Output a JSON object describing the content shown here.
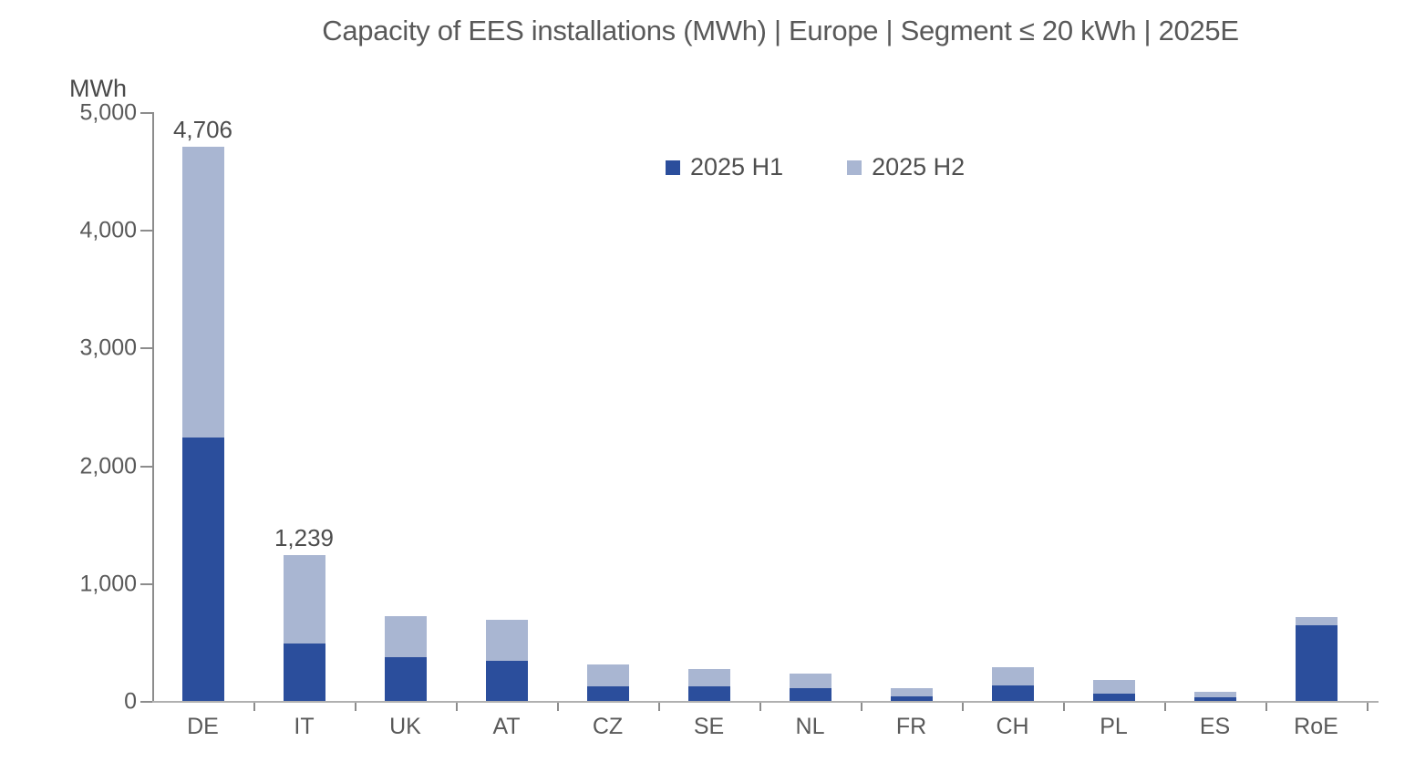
{
  "page": {
    "background": "#ffffff"
  },
  "chart_data": {
    "type": "bar",
    "stacked": true,
    "title": "Capacity of EES installations (MWh) | Europe | Segment ≤ 20 kWh | 2025E",
    "unit_label": "MWh",
    "ylabel": "MWh",
    "xlabel": "",
    "grid": false,
    "legend_position": "top-center",
    "ylim": [
      0,
      5000
    ],
    "ytick_labels": [
      "5,000",
      "4,000",
      "3,000",
      "2,000",
      "1,000",
      "0"
    ],
    "categories": [
      "DE",
      "IT",
      "UK",
      "AT",
      "CZ",
      "SE",
      "NL",
      "FR",
      "CH",
      "PL",
      "ES",
      "RoE"
    ],
    "series": [
      {
        "name": "2025 H1",
        "color": "#2b4e9c",
        "values": [
          2240,
          490,
          370,
          340,
          120,
          125,
          105,
          40,
          130,
          60,
          30,
          640
        ]
      },
      {
        "name": "2025 H2",
        "color": "#a9b6d2",
        "values": [
          2466,
          749,
          350,
          350,
          190,
          145,
          125,
          70,
          160,
          120,
          45,
          75
        ]
      }
    ],
    "totals_mwh": [
      4706,
      1239,
      720,
      690,
      310,
      270,
      230,
      110,
      290,
      180,
      75,
      715
    ],
    "visible_total_labels": [
      "4,706",
      "1,239",
      "",
      "",
      "",
      "",
      "",
      "",
      "",
      "",
      "",
      ""
    ]
  },
  "colors": {
    "series_h1": "#2b4e9c",
    "series_h2": "#a9b6d2",
    "title_text": "#595959",
    "axis_line": "#8c8c8c",
    "baseline": "#b0b0b0",
    "tick_text": "#595959",
    "data_label_text": "#4d4d4d"
  }
}
